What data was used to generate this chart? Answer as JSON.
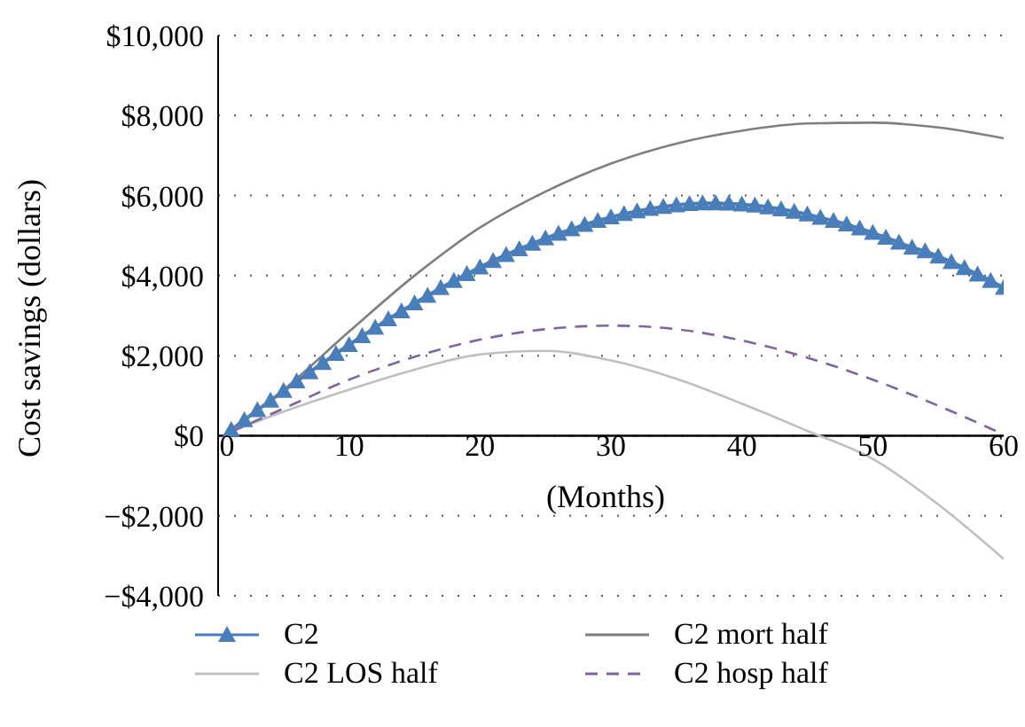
{
  "chart_data": {
    "type": "line",
    "xlabel": "(Months)",
    "ylabel": "Cost savings (dollars)",
    "xlim": [
      0,
      60
    ],
    "xticks": [
      0,
      10,
      20,
      30,
      40,
      50,
      60
    ],
    "ylim": [
      -4000,
      10000
    ],
    "yticks": [
      {
        "value": -4000,
        "label": "−$4,000"
      },
      {
        "value": -2000,
        "label": "−$2,000"
      },
      {
        "value": 0,
        "label": "$0"
      },
      {
        "value": 2000,
        "label": "$2,000"
      },
      {
        "value": 4000,
        "label": "$4,000"
      },
      {
        "value": 6000,
        "label": "$6,000"
      },
      {
        "value": 8000,
        "label": "$8,000"
      },
      {
        "value": 10000,
        "label": "$10,000"
      }
    ],
    "grid": "y",
    "legend": "bottom",
    "series": [
      {
        "name": "C2",
        "color": "#4a7ebb",
        "marker": "triangle",
        "line_style": "solid",
        "x": [
          1,
          2,
          3,
          4,
          5,
          6,
          7,
          8,
          9,
          10,
          11,
          12,
          13,
          14,
          15,
          16,
          17,
          18,
          19,
          20,
          21,
          22,
          23,
          24,
          25,
          26,
          27,
          28,
          29,
          30,
          31,
          32,
          33,
          34,
          35,
          36,
          37,
          38,
          39,
          40,
          41,
          42,
          43,
          44,
          45,
          46,
          47,
          48,
          49,
          50,
          51,
          52,
          53,
          54,
          55,
          56,
          57,
          58,
          59,
          60
        ],
        "values": [
          150,
          390,
          640,
          880,
          1120,
          1360,
          1590,
          1820,
          2050,
          2270,
          2490,
          2700,
          2910,
          3110,
          3310,
          3500,
          3690,
          3870,
          4040,
          4210,
          4370,
          4520,
          4660,
          4800,
          4930,
          5050,
          5160,
          5270,
          5370,
          5460,
          5540,
          5610,
          5670,
          5720,
          5760,
          5790,
          5810,
          5810,
          5800,
          5780,
          5750,
          5710,
          5660,
          5600,
          5530,
          5450,
          5370,
          5280,
          5180,
          5070,
          4950,
          4830,
          4700,
          4610,
          4480,
          4340,
          4190,
          4030,
          3870,
          3700
        ]
      },
      {
        "name": "C2 mort half",
        "color": "#7f7f7f",
        "marker": "none",
        "line_style": "solid",
        "x": [
          1,
          5,
          10,
          15,
          20,
          25,
          30,
          35,
          40,
          45,
          50,
          55,
          60
        ],
        "values": [
          150,
          1150,
          2600,
          4000,
          5200,
          6100,
          6800,
          7300,
          7620,
          7800,
          7820,
          7700,
          7430
        ]
      },
      {
        "name": "C2 LOS half",
        "color": "#bfbfbf",
        "marker": "none",
        "line_style": "solid",
        "x": [
          1,
          5,
          10,
          15,
          20,
          25,
          30,
          35,
          40,
          45,
          50,
          55,
          60
        ],
        "values": [
          100,
          600,
          1150,
          1650,
          2030,
          2120,
          1880,
          1420,
          800,
          120,
          -580,
          -1720,
          -3080
        ]
      },
      {
        "name": "C2 hosp half",
        "color": "#8064a2",
        "marker": "none",
        "line_style": "dashed",
        "x": [
          1,
          5,
          10,
          15,
          20,
          25,
          30,
          35,
          40,
          45,
          50,
          55,
          60
        ],
        "values": [
          100,
          680,
          1400,
          1970,
          2400,
          2660,
          2750,
          2660,
          2380,
          1950,
          1400,
          750,
          30
        ]
      }
    ]
  }
}
